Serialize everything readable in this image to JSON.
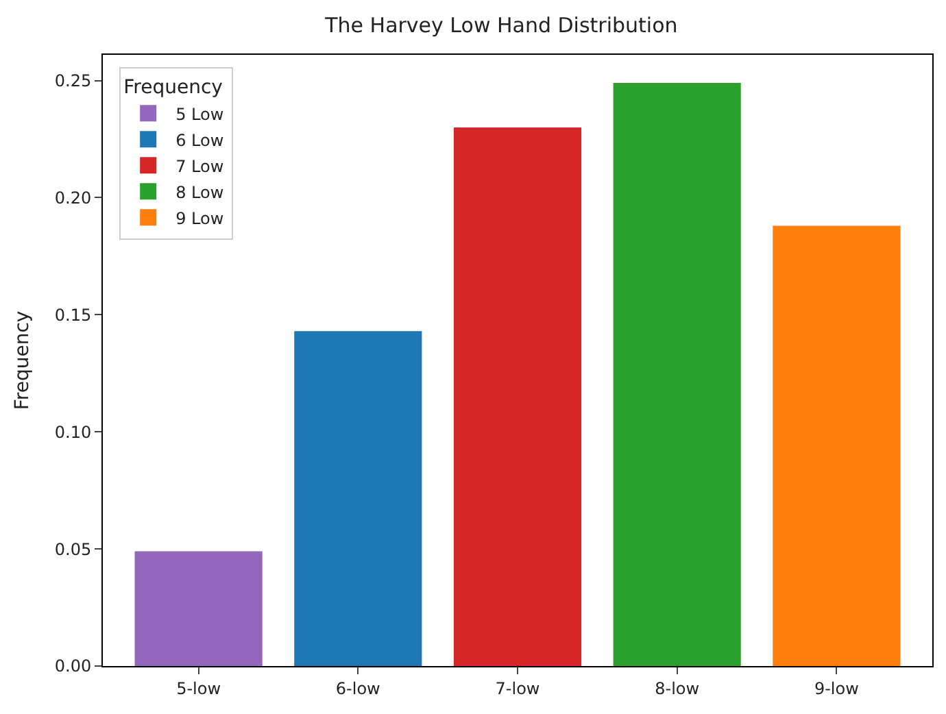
{
  "chart_data": {
    "type": "bar",
    "title": "The Harvey Low Hand Distribution",
    "ylabel": "Frequency",
    "legend_title": "Frequency",
    "categories": [
      "5-low",
      "6-low",
      "7-low",
      "8-low",
      "9-low"
    ],
    "series": [
      {
        "name": "5 Low",
        "color": "#9467bd",
        "values": [
          0.049,
          null,
          null,
          null,
          null
        ]
      },
      {
        "name": "6 Low",
        "color": "#1f77b4",
        "values": [
          null,
          0.143,
          null,
          null,
          null
        ]
      },
      {
        "name": "7 Low",
        "color": "#d62728",
        "values": [
          null,
          null,
          0.23,
          null,
          null
        ]
      },
      {
        "name": "8 Low",
        "color": "#2ca02c",
        "values": [
          null,
          null,
          null,
          0.249,
          null
        ]
      },
      {
        "name": "9 Low",
        "color": "#ff7f0e",
        "values": [
          null,
          null,
          null,
          null,
          0.188
        ]
      }
    ],
    "ylim": [
      0,
      0.261
    ],
    "yticks": [
      {
        "value": 0,
        "label": "0.00"
      },
      {
        "value": 0.05,
        "label": "0.05"
      },
      {
        "value": 0.1,
        "label": "0.10"
      },
      {
        "value": 0.15,
        "label": "0.15"
      },
      {
        "value": 0.2,
        "label": "0.20"
      },
      {
        "value": 0.25,
        "label": "0.25"
      }
    ],
    "legend": "top left"
  }
}
